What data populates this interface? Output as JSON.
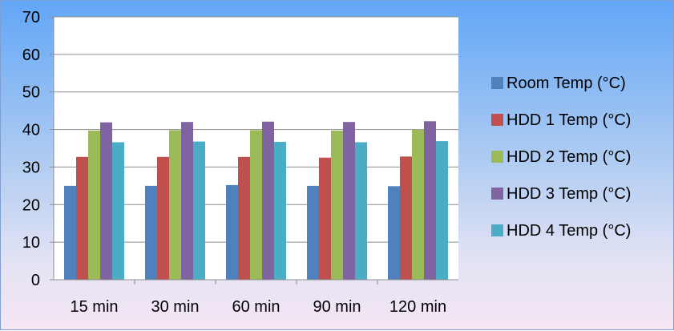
{
  "chart_data": {
    "type": "bar",
    "title": "",
    "xlabel": "",
    "ylabel": "",
    "ylim": [
      0,
      70
    ],
    "yticks": [
      0,
      10,
      20,
      30,
      40,
      50,
      60,
      70
    ],
    "categories": [
      "15 min",
      "30 min",
      "60 min",
      "90 min",
      "120 min"
    ],
    "grid": true,
    "legend_position": "right",
    "series": [
      {
        "name": "Room Temp (°C)",
        "color": "#4f81bd",
        "values": [
          25.0,
          25.0,
          25.2,
          25.0,
          24.9
        ]
      },
      {
        "name": "HDD 1 Temp (°C)",
        "color": "#c0504d",
        "values": [
          32.7,
          32.7,
          32.7,
          32.5,
          32.8
        ]
      },
      {
        "name": "HDD 2 Temp (°C)",
        "color": "#9bbb59",
        "values": [
          39.7,
          39.8,
          39.8,
          39.7,
          39.9
        ]
      },
      {
        "name": "HDD 3 Temp (°C)",
        "color": "#8064a2",
        "values": [
          41.9,
          42.0,
          42.1,
          42.0,
          42.2
        ]
      },
      {
        "name": "HDD 4 Temp (°C)",
        "color": "#4bacc6",
        "values": [
          36.6,
          36.8,
          36.7,
          36.6,
          36.9
        ]
      }
    ]
  }
}
